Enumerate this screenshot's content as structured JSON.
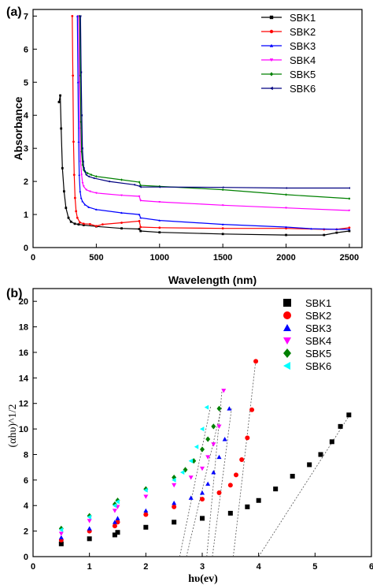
{
  "chart_data": [
    {
      "panel_label": "(a)",
      "type": "line",
      "xlabel": "Wavelength (nm)",
      "ylabel": "Absorbance",
      "xlim": [
        0,
        2600
      ],
      "ylim": [
        0,
        7.2
      ],
      "xticks": [
        0,
        500,
        1000,
        1500,
        2000,
        2500
      ],
      "yticks": [
        0,
        1,
        2,
        3,
        4,
        5,
        6,
        7
      ],
      "grid": false,
      "legend_position": "top-right",
      "series": [
        {
          "name": "SBK1",
          "color": "#000000",
          "marker": "square",
          "x": [
            205,
            215,
            222,
            232,
            245,
            260,
            280,
            300,
            330,
            360,
            400,
            500,
            700,
            840,
            850,
            1000,
            1500,
            2000,
            2300,
            2400,
            2500
          ],
          "y": [
            4.4,
            4.6,
            3.6,
            2.4,
            1.7,
            1.2,
            0.9,
            0.78,
            0.72,
            0.7,
            0.68,
            0.64,
            0.58,
            0.56,
            0.5,
            0.46,
            0.41,
            0.38,
            0.38,
            0.45,
            0.5
          ]
        },
        {
          "name": "SBK2",
          "color": "#ff0000",
          "marker": "circle",
          "x": [
            310,
            315,
            320,
            325,
            332,
            340,
            350,
            370,
            400,
            450,
            500,
            550,
            700,
            840,
            850,
            1000,
            1500,
            2000,
            2300,
            2400,
            2500
          ],
          "y": [
            7.0,
            5.2,
            3.2,
            2.2,
            1.5,
            1.1,
            0.9,
            0.76,
            0.72,
            0.71,
            0.65,
            0.7,
            0.75,
            0.8,
            0.62,
            0.6,
            0.58,
            0.58,
            0.55,
            0.55,
            0.6
          ]
        },
        {
          "name": "SBK3",
          "color": "#0000ff",
          "marker": "triangle",
          "x": [
            350,
            355,
            360,
            365,
            372,
            380,
            390,
            410,
            440,
            500,
            700,
            840,
            850,
            1000,
            1500,
            2000,
            2200,
            2400,
            2500
          ],
          "y": [
            7.0,
            5.0,
            3.2,
            2.2,
            1.7,
            1.5,
            1.4,
            1.3,
            1.22,
            1.15,
            1.05,
            1.0,
            0.9,
            0.82,
            0.7,
            0.62,
            0.57,
            0.55,
            0.55
          ]
        },
        {
          "name": "SBK4",
          "color": "#ff00ff",
          "marker": "triangle-down",
          "x": [
            360,
            365,
            370,
            376,
            384,
            392,
            400,
            420,
            450,
            500,
            700,
            840,
            850,
            1000,
            1500,
            2000,
            2500
          ],
          "y": [
            7.0,
            5.0,
            3.6,
            2.6,
            2.2,
            1.95,
            1.85,
            1.75,
            1.7,
            1.65,
            1.58,
            1.55,
            1.42,
            1.38,
            1.28,
            1.2,
            1.12
          ]
        },
        {
          "name": "SBK5",
          "color": "#008000",
          "marker": "diamond",
          "x": [
            368,
            373,
            378,
            384,
            392,
            400,
            410,
            430,
            460,
            500,
            700,
            840,
            850,
            1000,
            1500,
            2000,
            2500
          ],
          "y": [
            7.0,
            5.2,
            3.8,
            2.9,
            2.5,
            2.35,
            2.3,
            2.25,
            2.2,
            2.15,
            2.05,
            1.98,
            1.88,
            1.85,
            1.75,
            1.6,
            1.48
          ]
        },
        {
          "name": "SBK6",
          "color": "#000080",
          "marker": "triangle-left",
          "x": [
            375,
            380,
            385,
            390,
            396,
            402,
            410,
            420,
            440,
            480,
            600,
            800,
            840,
            850,
            1000,
            1500,
            2000,
            2500
          ],
          "y": [
            7.0,
            5.3,
            4.0,
            3.0,
            2.6,
            2.4,
            2.3,
            2.2,
            2.15,
            2.1,
            2.0,
            1.9,
            1.86,
            1.83,
            1.83,
            1.82,
            1.8,
            1.8
          ]
        }
      ]
    },
    {
      "panel_label": "(b)",
      "type": "scatter",
      "xlabel": "hυ(ev)",
      "ylabel": "(αhυ)^1/2",
      "xlim": [
        0,
        6
      ],
      "ylim": [
        0,
        21
      ],
      "xticks": [
        0,
        1,
        2,
        3,
        4,
        5,
        6
      ],
      "yticks": [
        0,
        2,
        4,
        6,
        8,
        10,
        12,
        14,
        16,
        18,
        20
      ],
      "grid": false,
      "legend_position": "top-right",
      "series": [
        {
          "name": "SBK1",
          "color": "#000000",
          "marker": "square",
          "x": [
            0.5,
            1.0,
            1.45,
            1.5,
            2.0,
            2.5,
            3.0,
            3.5,
            3.8,
            4.0,
            4.3,
            4.6,
            4.9,
            5.1,
            5.3,
            5.45,
            5.6
          ],
          "y": [
            1.0,
            1.4,
            1.7,
            1.9,
            2.3,
            2.7,
            3.0,
            3.4,
            3.9,
            4.4,
            5.3,
            6.3,
            7.2,
            8.0,
            9.0,
            10.2,
            11.1
          ]
        },
        {
          "name": "SBK2",
          "color": "#ff0000",
          "marker": "circle",
          "x": [
            0.5,
            1.0,
            1.45,
            1.5,
            2.0,
            2.5,
            3.0,
            3.3,
            3.5,
            3.6,
            3.7,
            3.8,
            3.88,
            3.95
          ],
          "y": [
            1.3,
            2.0,
            2.4,
            2.7,
            3.3,
            3.9,
            4.5,
            5.0,
            5.6,
            6.4,
            7.6,
            9.3,
            11.5,
            15.3
          ]
        },
        {
          "name": "SBK3",
          "color": "#0000ff",
          "marker": "triangle",
          "x": [
            0.5,
            1.0,
            1.45,
            1.5,
            2.0,
            2.5,
            2.8,
            3.0,
            3.1,
            3.2,
            3.3,
            3.4,
            3.48
          ],
          "y": [
            1.5,
            2.2,
            2.7,
            3.0,
            3.6,
            4.2,
            4.6,
            5.0,
            5.7,
            6.6,
            7.8,
            9.2,
            11.6
          ]
        },
        {
          "name": "SBK4",
          "color": "#ff00ff",
          "marker": "triangle-down",
          "x": [
            0.5,
            1.0,
            1.45,
            1.5,
            2.0,
            2.5,
            2.8,
            3.0,
            3.1,
            3.2,
            3.3,
            3.38
          ],
          "y": [
            1.8,
            2.8,
            3.6,
            3.9,
            4.7,
            5.6,
            6.2,
            6.9,
            7.8,
            8.8,
            10.2,
            13.0
          ]
        },
        {
          "name": "SBK5",
          "color": "#008000",
          "marker": "diamond",
          "x": [
            0.5,
            1.0,
            1.45,
            1.5,
            2.0,
            2.5,
            2.7,
            2.85,
            3.0,
            3.1,
            3.2,
            3.3
          ],
          "y": [
            2.2,
            3.2,
            4.1,
            4.4,
            5.3,
            6.2,
            6.8,
            7.5,
            8.4,
            9.2,
            10.2,
            11.6
          ]
        },
        {
          "name": "SBK6",
          "color": "#00ffff",
          "marker": "triangle-left",
          "x": [
            0.5,
            1.0,
            1.45,
            1.5,
            2.0,
            2.5,
            2.65,
            2.8,
            2.9,
            3.0,
            3.08
          ],
          "y": [
            2.1,
            3.1,
            4.0,
            4.3,
            5.2,
            6.0,
            6.6,
            7.5,
            8.6,
            10.0,
            11.7
          ]
        }
      ],
      "fit_lines": [
        {
          "x": [
            2.6,
            3.15
          ],
          "y": [
            0,
            11.8
          ]
        },
        {
          "x": [
            2.72,
            3.35
          ],
          "y": [
            0,
            11.8
          ]
        },
        {
          "x": [
            3.08,
            3.35
          ],
          "y": [
            0,
            13.0
          ]
        },
        {
          "x": [
            3.18,
            3.52
          ],
          "y": [
            0,
            11.6
          ]
        },
        {
          "x": [
            3.55,
            3.95
          ],
          "y": [
            0,
            15.4
          ]
        },
        {
          "x": [
            4.0,
            5.6
          ],
          "y": [
            0,
            11.0
          ]
        }
      ]
    }
  ]
}
